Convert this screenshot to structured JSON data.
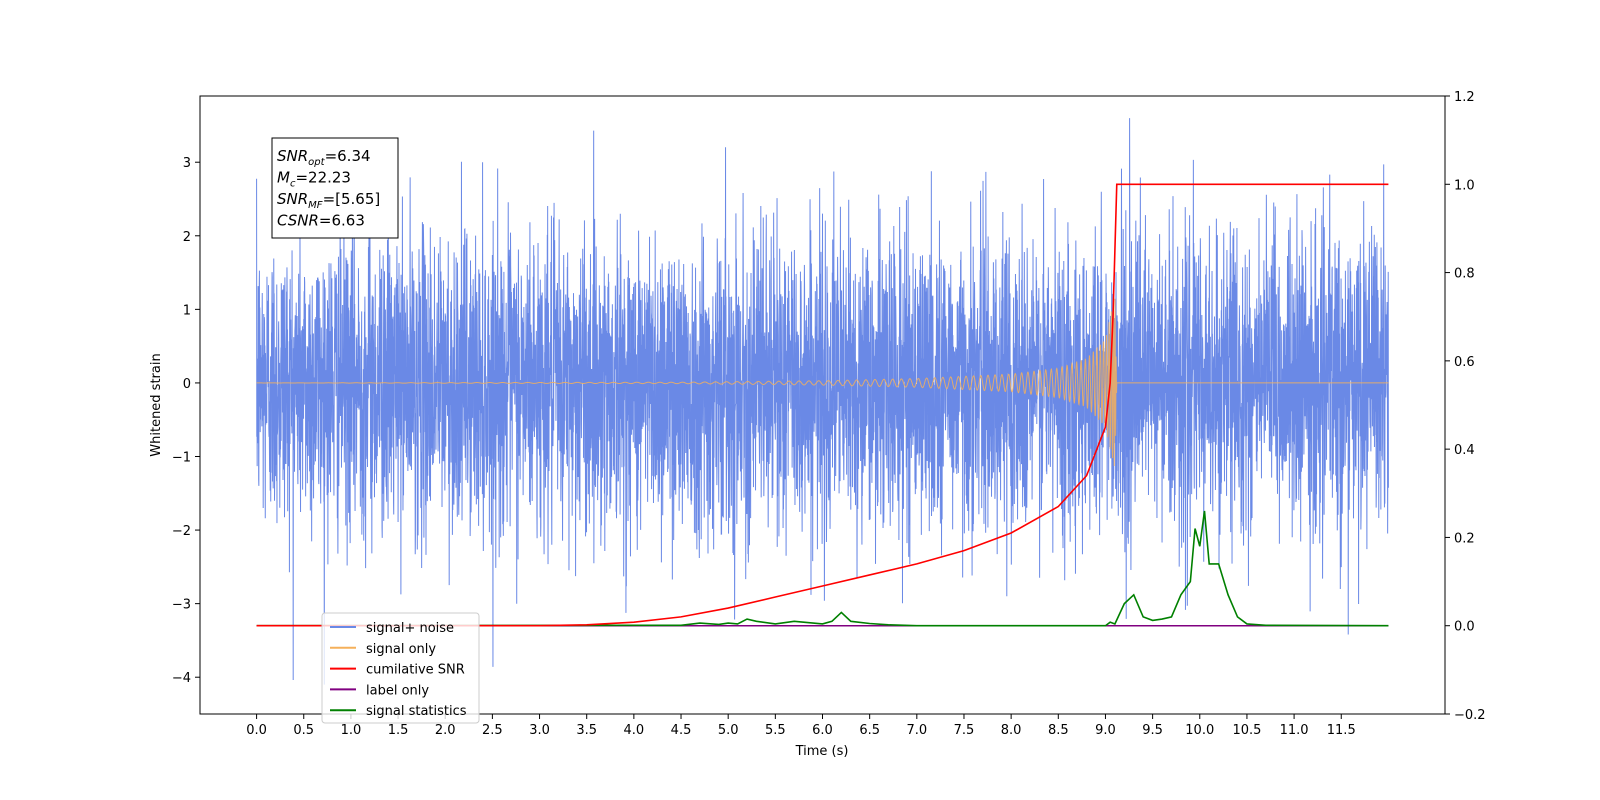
{
  "chart_data": {
    "type": "line",
    "title": "",
    "xlabel": "Time (s)",
    "ylabel": "Whitened strain",
    "y2label": "",
    "xlim": [
      -0.6,
      12.6
    ],
    "ylim": [
      -4.5,
      3.9
    ],
    "y2lim": [
      -0.2,
      1.2
    ],
    "grid": false,
    "legend_position": "lower-left",
    "x_ticks": [
      "0.0",
      "0.5",
      "1.0",
      "1.5",
      "2.0",
      "2.5",
      "3.0",
      "3.5",
      "4.0",
      "4.5",
      "5.0",
      "5.5",
      "6.0",
      "6.5",
      "7.0",
      "7.5",
      "8.0",
      "8.5",
      "9.0",
      "9.5",
      "10.0",
      "10.5",
      "11.0",
      "11.5"
    ],
    "y_ticks": [
      "3",
      "2",
      "1",
      "0",
      "−1",
      "−2",
      "−3",
      "−4"
    ],
    "y2_ticks": [
      "1.2",
      "1.0",
      "0.8",
      "0.6",
      "0.4",
      "0.2",
      "0.0",
      "−0.2"
    ],
    "annotation": {
      "lines": [
        {
          "base": "SNR",
          "sub": "opt",
          "rest": "=6.34"
        },
        {
          "base": "M",
          "sub": "c",
          "rest": "=22.23"
        },
        {
          "base": "SNR",
          "sub": "MF",
          "rest": "=[5.65]"
        },
        {
          "base": "CSNR",
          "sub": "",
          "rest": "=6.63"
        }
      ]
    },
    "series": [
      {
        "name": "signal+ noise",
        "axis": "left",
        "color": "#6a89e6",
        "description": "whitened strain, noise of std ~1 plus chirp, sampled over 0 to 12 s",
        "x_range": [
          0.0,
          12.0
        ],
        "approx_std": 1.0,
        "approx_range": [
          -4.1,
          3.6
        ]
      },
      {
        "name": "signal only",
        "axis": "left",
        "color": "#f5b05a",
        "description": "chirp waveform that grows in amplitude and frequency, ending at merger",
        "x": [
          0.0,
          4.5,
          6.0,
          7.0,
          8.0,
          8.5,
          8.8,
          9.0,
          9.05,
          9.1,
          9.12,
          12.0
        ],
        "envelope": [
          0.0,
          0.01,
          0.03,
          0.06,
          0.12,
          0.2,
          0.33,
          0.6,
          0.9,
          1.2,
          0.0,
          0.0
        ]
      },
      {
        "name": "cumilative SNR",
        "axis": "right",
        "color": "#ff0000",
        "x": [
          0.0,
          3.0,
          3.5,
          4.0,
          4.5,
          5.0,
          5.5,
          6.0,
          6.5,
          7.0,
          7.5,
          8.0,
          8.5,
          8.8,
          9.0,
          9.05,
          9.08,
          9.1,
          9.12,
          12.0
        ],
        "y": [
          0.0,
          0.0,
          0.002,
          0.008,
          0.02,
          0.04,
          0.065,
          0.09,
          0.115,
          0.14,
          0.17,
          0.21,
          0.27,
          0.34,
          0.45,
          0.55,
          0.7,
          0.85,
          1.0,
          1.0
        ]
      },
      {
        "name": "label only",
        "axis": "right",
        "color": "#800080",
        "x": [
          0.0,
          12.0
        ],
        "y": [
          0.0,
          0.0
        ]
      },
      {
        "name": "signal statistics",
        "axis": "right",
        "color": "#008000",
        "x": [
          0.0,
          4.5,
          4.7,
          4.9,
          5.0,
          5.1,
          5.2,
          5.3,
          5.5,
          5.7,
          5.8,
          6.0,
          6.1,
          6.2,
          6.3,
          6.5,
          6.7,
          7.0,
          9.0,
          9.05,
          9.1,
          9.2,
          9.3,
          9.4,
          9.5,
          9.6,
          9.7,
          9.8,
          9.9,
          9.95,
          10.0,
          10.05,
          10.1,
          10.2,
          10.3,
          10.4,
          10.5,
          10.7,
          12.0
        ],
        "y": [
          0.0,
          0.001,
          0.006,
          0.003,
          0.006,
          0.004,
          0.015,
          0.01,
          0.004,
          0.01,
          0.008,
          0.004,
          0.01,
          0.03,
          0.01,
          0.005,
          0.002,
          0.0,
          0.0,
          0.008,
          0.004,
          0.05,
          0.07,
          0.02,
          0.012,
          0.015,
          0.02,
          0.07,
          0.1,
          0.22,
          0.18,
          0.26,
          0.14,
          0.14,
          0.07,
          0.02,
          0.004,
          0.001,
          0.0
        ]
      }
    ]
  }
}
